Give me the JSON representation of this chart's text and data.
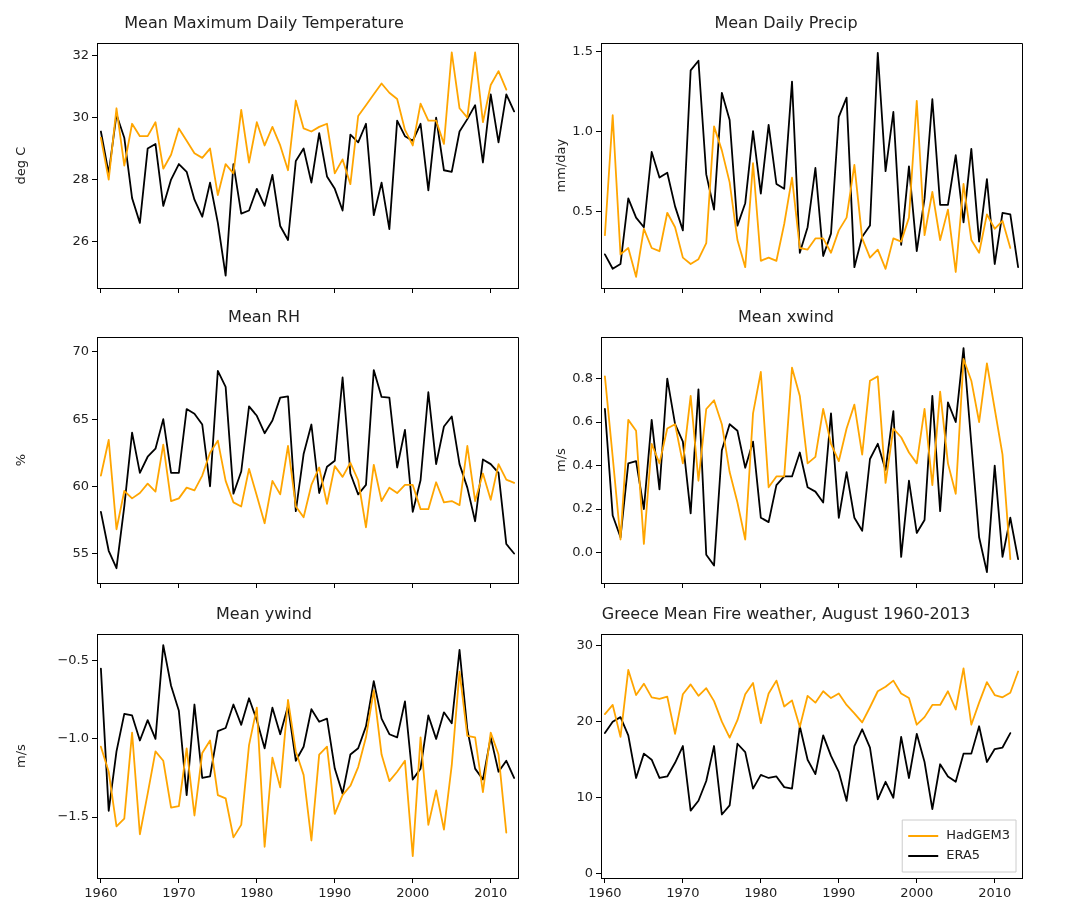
{
  "chart_data": [
    {
      "type": "line",
      "title": "Mean Maximum Daily Temperature",
      "ylabel": "deg C",
      "x": [
        1960,
        1961,
        1962,
        1963,
        1964,
        1965,
        1966,
        1967,
        1968,
        1969,
        1970,
        1971,
        1972,
        1973,
        1974,
        1975,
        1976,
        1977,
        1978,
        1979,
        1980,
        1981,
        1982,
        1983,
        1984,
        1985,
        1986,
        1987,
        1988,
        1989,
        1990,
        1991,
        1992,
        1993,
        1994,
        1995,
        1996,
        1997,
        1998,
        1999,
        2000,
        2001,
        2002,
        2003,
        2004,
        2005,
        2006,
        2007,
        2008,
        2009,
        2010,
        2011,
        2012,
        2013
      ],
      "xlim": [
        1959.5,
        2013.5
      ],
      "xticks": [
        1960,
        1970,
        1980,
        1990,
        2000,
        2010
      ],
      "ylim": [
        24.5,
        32.4
      ],
      "yticks": [
        26,
        28,
        30,
        32
      ],
      "tick_labels": "y",
      "series": [
        {
          "color": "#ffa500",
          "values": [
            29.35,
            28.0,
            30.3,
            28.45,
            29.8,
            29.4,
            29.4,
            29.85,
            28.35,
            28.8,
            29.65,
            29.25,
            28.85,
            28.7,
            29.0,
            27.5,
            28.5,
            28.2,
            30.25,
            28.55,
            29.85,
            29.1,
            29.7,
            29.1,
            28.3,
            30.55,
            29.65,
            29.55,
            29.7,
            29.8,
            28.2,
            28.65,
            27.85,
            30.05,
            30.4,
            30.75,
            31.1,
            30.8,
            30.6,
            29.6,
            29.1,
            30.45,
            29.9,
            29.9,
            29.15,
            32.1,
            30.3,
            30.0,
            32.1,
            29.85,
            31.05,
            31.5,
            30.9,
            null
          ]
        },
        {
          "color": "#000000",
          "values": [
            29.55,
            28.2,
            30.1,
            29.35,
            27.4,
            26.6,
            29.0,
            29.15,
            27.15,
            28.0,
            28.5,
            28.25,
            27.35,
            26.8,
            27.9,
            26.6,
            24.9,
            28.5,
            26.9,
            27.0,
            27.7,
            27.15,
            28.15,
            26.5,
            26.05,
            28.6,
            29.0,
            27.9,
            29.5,
            28.1,
            27.7,
            27.0,
            29.45,
            29.2,
            29.8,
            26.85,
            27.9,
            26.4,
            29.9,
            29.4,
            29.25,
            29.8,
            27.65,
            30.0,
            28.3,
            28.25,
            29.55,
            29.95,
            30.4,
            28.55,
            30.75,
            29.2,
            30.75,
            30.2
          ]
        }
      ]
    },
    {
      "type": "line",
      "title": "Mean Daily Precip",
      "ylabel": "mm/day",
      "x": [
        1960,
        1961,
        1962,
        1963,
        1964,
        1965,
        1966,
        1967,
        1968,
        1969,
        1970,
        1971,
        1972,
        1973,
        1974,
        1975,
        1976,
        1977,
        1978,
        1979,
        1980,
        1981,
        1982,
        1983,
        1984,
        1985,
        1986,
        1987,
        1988,
        1989,
        1990,
        1991,
        1992,
        1993,
        1994,
        1995,
        1996,
        1997,
        1998,
        1999,
        2000,
        2001,
        2002,
        2003,
        2004,
        2005,
        2006,
        2007,
        2008,
        2009,
        2010,
        2011,
        2012,
        2013
      ],
      "xlim": [
        1959.5,
        2013.5
      ],
      "xticks": [
        1960,
        1970,
        1980,
        1990,
        2000,
        2010
      ],
      "ylim": [
        0.02,
        1.55
      ],
      "yticks": [
        {
          "value": 0.5,
          "label": "0.5"
        },
        {
          "value": 1,
          "label": "1.0"
        },
        {
          "value": 1.5,
          "label": "1.5"
        }
      ],
      "tick_labels": "y",
      "series": [
        {
          "color": "#ffa500",
          "values": [
            0.35,
            1.1,
            0.23,
            0.27,
            0.09,
            0.39,
            0.27,
            0.25,
            0.49,
            0.4,
            0.21,
            0.17,
            0.2,
            0.3,
            1.03,
            0.88,
            0.68,
            0.32,
            0.15,
            0.8,
            0.19,
            0.21,
            0.19,
            0.42,
            0.71,
            0.27,
            0.26,
            0.33,
            0.33,
            0.24,
            0.38,
            0.46,
            0.79,
            0.33,
            0.21,
            0.26,
            0.14,
            0.33,
            0.31,
            0.46,
            1.19,
            0.35,
            0.62,
            0.32,
            0.51,
            0.12,
            0.67,
            0.32,
            0.24,
            0.48,
            0.39,
            0.44,
            0.27,
            null
          ]
        },
        {
          "color": "#000000",
          "values": [
            0.23,
            0.14,
            0.17,
            0.58,
            0.46,
            0.4,
            0.87,
            0.71,
            0.74,
            0.53,
            0.38,
            1.38,
            1.44,
            0.73,
            0.51,
            1.24,
            1.07,
            0.41,
            0.55,
            1.0,
            0.61,
            1.04,
            0.67,
            0.64,
            1.31,
            0.24,
            0.4,
            0.77,
            0.22,
            0.36,
            1.09,
            1.21,
            0.15,
            0.34,
            0.41,
            1.49,
            0.75,
            1.12,
            0.29,
            0.78,
            0.25,
            0.58,
            1.2,
            0.54,
            0.54,
            0.85,
            0.43,
            0.89,
            0.31,
            0.7,
            0.17,
            0.49,
            0.48,
            0.15
          ]
        }
      ]
    },
    {
      "type": "line",
      "title": "Mean RH",
      "ylabel": "%",
      "x": [
        1960,
        1961,
        1962,
        1963,
        1964,
        1965,
        1966,
        1967,
        1968,
        1969,
        1970,
        1971,
        1972,
        1973,
        1974,
        1975,
        1976,
        1977,
        1978,
        1979,
        1980,
        1981,
        1982,
        1983,
        1984,
        1985,
        1986,
        1987,
        1988,
        1989,
        1990,
        1991,
        1992,
        1993,
        1994,
        1995,
        1996,
        1997,
        1998,
        1999,
        2000,
        2001,
        2002,
        2003,
        2004,
        2005,
        2006,
        2007,
        2008,
        2009,
        2010,
        2011,
        2012,
        2013
      ],
      "xlim": [
        1959.5,
        2013.5
      ],
      "xticks": [
        1960,
        1970,
        1980,
        1990,
        2000,
        2010
      ],
      "ylim": [
        52.8,
        71.1
      ],
      "yticks": [
        55,
        60,
        65,
        70
      ],
      "tick_labels": "y",
      "series": [
        {
          "color": "#ffa500",
          "values": [
            60.8,
            63.45,
            56.8,
            59.65,
            59.1,
            59.5,
            60.2,
            59.6,
            63.1,
            58.9,
            59.1,
            59.9,
            59.7,
            60.8,
            62.5,
            63.4,
            60.4,
            58.8,
            58.5,
            61.3,
            59.3,
            57.25,
            60.4,
            59.4,
            63.0,
            58.5,
            57.7,
            60.1,
            61.4,
            58.7,
            61.5,
            60.7,
            61.75,
            60.45,
            56.95,
            61.6,
            58.9,
            59.9,
            59.5,
            60.1,
            60.1,
            58.3,
            58.3,
            60.3,
            58.8,
            58.9,
            58.6,
            63.0,
            58.9,
            60.95,
            59.0,
            61.65,
            60.5,
            60.25
          ]
        },
        {
          "color": "#000000",
          "values": [
            58.1,
            55.2,
            53.9,
            58.5,
            64.0,
            61.0,
            62.2,
            62.8,
            65.0,
            61.0,
            61.0,
            65.75,
            65.4,
            64.6,
            60.0,
            68.6,
            67.4,
            59.45,
            61.1,
            65.95,
            65.25,
            63.95,
            64.9,
            66.6,
            66.7,
            58.15,
            62.4,
            64.6,
            59.5,
            61.45,
            61.9,
            68.1,
            60.95,
            59.4,
            60.1,
            68.65,
            66.65,
            66.6,
            61.4,
            64.2,
            58.1,
            60.45,
            67.0,
            61.65,
            64.45,
            65.2,
            61.65,
            59.9,
            57.4,
            62.0,
            61.65,
            61.0,
            55.7,
            55.0
          ]
        }
      ]
    },
    {
      "type": "line",
      "title": "Mean xwind",
      "ylabel": "m/s",
      "x": [
        1960,
        1961,
        1962,
        1963,
        1964,
        1965,
        1966,
        1967,
        1968,
        1969,
        1970,
        1971,
        1972,
        1973,
        1974,
        1975,
        1976,
        1977,
        1978,
        1979,
        1980,
        1981,
        1982,
        1983,
        1984,
        1985,
        1986,
        1987,
        1988,
        1989,
        1990,
        1991,
        1992,
        1993,
        1994,
        1995,
        1996,
        1997,
        1998,
        1999,
        2000,
        2001,
        2002,
        2003,
        2004,
        2005,
        2006,
        2007,
        2008,
        2009,
        2010,
        2011,
        2012,
        2013
      ],
      "xlim": [
        1959.5,
        2013.5
      ],
      "xticks": [
        1960,
        1970,
        1980,
        1990,
        2000,
        2010
      ],
      "ylim": [
        -0.14,
        0.99
      ],
      "yticks": [
        {
          "value": 0,
          "label": "0.0"
        },
        {
          "value": 0.2,
          "label": "0.2"
        },
        {
          "value": 0.4,
          "label": "0.4"
        },
        {
          "value": 0.6,
          "label": "0.6"
        },
        {
          "value": 0.8,
          "label": "0.8"
        }
      ],
      "tick_labels": "y",
      "series": [
        {
          "color": "#ffa500",
          "values": [
            0.81,
            0.44,
            0.06,
            0.61,
            0.56,
            0.04,
            0.5,
            0.41,
            0.57,
            0.59,
            0.41,
            0.72,
            0.33,
            0.66,
            0.7,
            0.59,
            0.37,
            0.23,
            0.06,
            0.64,
            0.83,
            0.3,
            0.35,
            0.35,
            0.85,
            0.72,
            0.41,
            0.44,
            0.66,
            0.5,
            0.42,
            0.57,
            0.68,
            0.45,
            0.79,
            0.81,
            0.32,
            0.57,
            0.53,
            0.46,
            0.41,
            0.66,
            0.31,
            0.74,
            0.41,
            0.27,
            0.89,
            0.79,
            0.6,
            0.87,
            0.66,
            0.45,
            -0.03,
            null
          ]
        },
        {
          "color": "#000000",
          "values": [
            0.66,
            0.17,
            0.07,
            0.41,
            0.42,
            0.2,
            0.61,
            0.29,
            0.8,
            0.59,
            0.51,
            0.18,
            0.75,
            -0.01,
            -0.06,
            0.47,
            0.59,
            0.56,
            0.39,
            0.51,
            0.16,
            0.14,
            0.31,
            0.35,
            0.35,
            0.46,
            0.3,
            0.28,
            0.23,
            0.64,
            0.16,
            0.37,
            0.16,
            0.1,
            0.43,
            0.5,
            0.38,
            0.65,
            -0.02,
            0.33,
            0.09,
            0.15,
            0.72,
            0.19,
            0.69,
            0.6,
            0.94,
            0.5,
            0.07,
            -0.09,
            0.4,
            -0.02,
            0.16,
            -0.03
          ]
        }
      ]
    },
    {
      "type": "line",
      "title": "Mean ywind",
      "ylabel": "m/s",
      "x": [
        1960,
        1961,
        1962,
        1963,
        1964,
        1965,
        1966,
        1967,
        1968,
        1969,
        1970,
        1971,
        1972,
        1973,
        1974,
        1975,
        1976,
        1977,
        1978,
        1979,
        1980,
        1981,
        1982,
        1983,
        1984,
        1985,
        1986,
        1987,
        1988,
        1989,
        1990,
        1991,
        1992,
        1993,
        1994,
        1995,
        1996,
        1997,
        1998,
        1999,
        2000,
        2001,
        2002,
        2003,
        2004,
        2005,
        2006,
        2007,
        2008,
        2009,
        2010,
        2011,
        2012,
        2013
      ],
      "xlim": [
        1959.5,
        2013.5
      ],
      "xticks": [
        1960,
        1970,
        1980,
        1990,
        2000,
        2010
      ],
      "ylim": [
        -1.89,
        -0.33
      ],
      "yticks": [
        {
          "value": -1.5,
          "label": "−1.5"
        },
        {
          "value": -1,
          "label": "−1.0"
        },
        {
          "value": -0.5,
          "label": "−0.5"
        }
      ],
      "series": [
        {
          "color": "#ffa500",
          "values": [
            -1.05,
            -1.21,
            -1.56,
            -1.51,
            -0.96,
            -1.61,
            -1.35,
            -1.08,
            -1.14,
            -1.44,
            -1.43,
            -1.06,
            -1.49,
            -1.09,
            -1.01,
            -1.36,
            -1.38,
            -1.63,
            -1.55,
            -1.04,
            -0.8,
            -1.69,
            -1.12,
            -1.31,
            -0.75,
            -1.08,
            -1.23,
            -1.65,
            -1.1,
            -1.05,
            -1.48,
            -1.36,
            -1.3,
            -1.18,
            -0.99,
            -0.69,
            -1.1,
            -1.27,
            -1.21,
            -1.14,
            -1.75,
            -0.99,
            -1.55,
            -1.33,
            -1.58,
            -1.17,
            -0.57,
            -0.98,
            -0.99,
            -1.34,
            -0.96,
            -1.1,
            -1.6,
            null
          ]
        },
        {
          "color": "#000000",
          "values": [
            -0.55,
            -1.46,
            -1.08,
            -0.84,
            -0.85,
            -1.01,
            -0.88,
            -1.0,
            -0.4,
            -0.66,
            -0.82,
            -1.36,
            -0.78,
            -1.25,
            -1.24,
            -0.95,
            -0.93,
            -0.78,
            -0.91,
            -0.74,
            -0.88,
            -1.06,
            -0.8,
            -0.97,
            -0.79,
            -1.14,
            -1.05,
            -0.81,
            -0.89,
            -0.87,
            -1.19,
            -1.35,
            -1.1,
            -1.06,
            -0.92,
            -0.63,
            -0.87,
            -0.97,
            -0.99,
            -0.76,
            -1.26,
            -1.19,
            -0.85,
            -1.0,
            -0.83,
            -0.9,
            -0.43,
            -0.94,
            -1.19,
            -1.26,
            -0.99,
            -1.21,
            -1.14,
            -1.25
          ]
        }
      ]
    },
    {
      "type": "line",
      "title": "Greece Mean Fire weather, August 1960-2013",
      "x": [
        1960,
        1961,
        1962,
        1963,
        1964,
        1965,
        1966,
        1967,
        1968,
        1969,
        1970,
        1971,
        1972,
        1973,
        1974,
        1975,
        1976,
        1977,
        1978,
        1979,
        1980,
        1981,
        1982,
        1983,
        1984,
        1985,
        1986,
        1987,
        1988,
        1989,
        1990,
        1991,
        1992,
        1993,
        1994,
        1995,
        1996,
        1997,
        1998,
        1999,
        2000,
        2001,
        2002,
        2003,
        2004,
        2005,
        2006,
        2007,
        2008,
        2009,
        2010,
        2011,
        2012,
        2013
      ],
      "xlim": [
        1959.5,
        2013.5
      ],
      "xticks": [
        1960,
        1970,
        1980,
        1990,
        2000,
        2010
      ],
      "ylim": [
        -0.55,
        31.5
      ],
      "yticks": [
        0,
        10,
        20,
        30
      ],
      "legend": "bottom right",
      "series": [
        {
          "name": "HadGEM3",
          "color": "#ffa500",
          "values": [
            21.0,
            22.2,
            18.0,
            26.8,
            23.5,
            25.0,
            23.2,
            23.0,
            23.3,
            18.4,
            23.6,
            24.9,
            23.4,
            24.4,
            22.7,
            20.0,
            17.9,
            20.2,
            23.6,
            25.1,
            19.8,
            23.7,
            25.4,
            22.0,
            22.8,
            19.3,
            23.4,
            22.5,
            24.0,
            23.1,
            23.7,
            22.2,
            21.1,
            19.9,
            21.9,
            24.0,
            24.6,
            25.4,
            23.7,
            23.1,
            19.6,
            20.6,
            22.2,
            22.2,
            24.0,
            21.6,
            27.0,
            19.6,
            22.5,
            25.2,
            23.5,
            23.2,
            23.8,
            26.6
          ]
        },
        {
          "name": "ERA5",
          "color": "#000000",
          "values": [
            18.5,
            20.0,
            20.6,
            18.2,
            12.6,
            15.8,
            15.0,
            12.6,
            12.8,
            14.6,
            16.8,
            8.3,
            9.6,
            12.2,
            16.8,
            7.8,
            9.0,
            17.1,
            16.0,
            11.2,
            13.0,
            12.6,
            12.8,
            11.4,
            11.2,
            19.4,
            15.0,
            13.1,
            18.2,
            15.5,
            13.4,
            9.6,
            16.8,
            19.0,
            16.6,
            9.8,
            12.1,
            10.0,
            18.0,
            12.6,
            18.4,
            14.7,
            8.5,
            14.4,
            12.8,
            12.1,
            15.8,
            15.8,
            19.4,
            14.7,
            16.4,
            16.6,
            18.5,
            null
          ]
        }
      ]
    }
  ]
}
